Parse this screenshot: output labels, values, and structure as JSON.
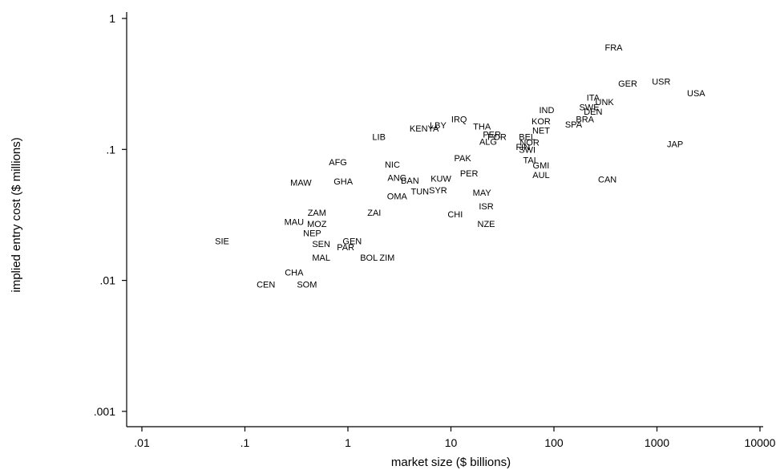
{
  "chart_data": {
    "type": "scatter",
    "xlabel": "market size ($ billions)",
    "ylabel": "implied entry cost ($ millions)",
    "x_scale": "log",
    "y_scale": "log",
    "xlim": [
      0.01,
      10000
    ],
    "ylim": [
      0.001,
      1
    ],
    "x_ticks": [
      {
        "value": 0.01,
        "label": ".01"
      },
      {
        "value": 0.1,
        "label": ".1"
      },
      {
        "value": 1,
        "label": "1"
      },
      {
        "value": 10,
        "label": "10"
      },
      {
        "value": 100,
        "label": "100"
      },
      {
        "value": 1000,
        "label": "1000"
      },
      {
        "value": 10000,
        "label": "10000"
      }
    ],
    "y_ticks": [
      {
        "value": 0.001,
        "label": ".001"
      },
      {
        "value": 0.01,
        "label": ".01"
      },
      {
        "value": 0.1,
        "label": ".1"
      },
      {
        "value": 1,
        "label": "1"
      }
    ],
    "grid": false,
    "points": [
      {
        "label": "FRA",
        "x": 380,
        "y": 0.6
      },
      {
        "label": "GER",
        "x": 520,
        "y": 0.32
      },
      {
        "label": "USR",
        "x": 1100,
        "y": 0.33
      },
      {
        "label": "USA",
        "x": 2400,
        "y": 0.27
      },
      {
        "label": "ITA",
        "x": 240,
        "y": 0.25
      },
      {
        "label": "UNK",
        "x": 310,
        "y": 0.23
      },
      {
        "label": "SWE",
        "x": 220,
        "y": 0.21
      },
      {
        "label": "DEN",
        "x": 240,
        "y": 0.195
      },
      {
        "label": "BRA",
        "x": 200,
        "y": 0.17
      },
      {
        "label": "SPA",
        "x": 155,
        "y": 0.155
      },
      {
        "label": "IND",
        "x": 85,
        "y": 0.2
      },
      {
        "label": "KOR",
        "x": 75,
        "y": 0.165
      },
      {
        "label": "NET",
        "x": 75,
        "y": 0.14
      },
      {
        "label": "BEL",
        "x": 55,
        "y": 0.125
      },
      {
        "label": "NOR",
        "x": 58,
        "y": 0.113
      },
      {
        "label": "FIN",
        "x": 50,
        "y": 0.105
      },
      {
        "label": "SWI",
        "x": 55,
        "y": 0.1
      },
      {
        "label": "JAP",
        "x": 1500,
        "y": 0.11
      },
      {
        "label": "CAN",
        "x": 330,
        "y": 0.059
      },
      {
        "label": "AUL",
        "x": 75,
        "y": 0.064
      },
      {
        "label": "TAI",
        "x": 58,
        "y": 0.083
      },
      {
        "label": "GMI",
        "x": 75,
        "y": 0.076
      },
      {
        "label": "IRQ",
        "x": 12,
        "y": 0.17
      },
      {
        "label": "THA",
        "x": 20,
        "y": 0.15
      },
      {
        "label": "KENYA",
        "x": 5.5,
        "y": 0.145
      },
      {
        "label": "LBY",
        "x": 7.5,
        "y": 0.153
      },
      {
        "label": "PER",
        "x": 25,
        "y": 0.13
      },
      {
        "label": "POR",
        "x": 28,
        "y": 0.125
      },
      {
        "label": "ALG",
        "x": 23,
        "y": 0.115
      },
      {
        "label": "LIB",
        "x": 2,
        "y": 0.125
      },
      {
        "label": "AFG",
        "x": 0.8,
        "y": 0.08
      },
      {
        "label": "NIC",
        "x": 2.7,
        "y": 0.077
      },
      {
        "label": "PAK",
        "x": 13,
        "y": 0.086
      },
      {
        "label": "MAW",
        "x": 0.35,
        "y": 0.056
      },
      {
        "label": "GHA",
        "x": 0.9,
        "y": 0.057
      },
      {
        "label": "ANG",
        "x": 3,
        "y": 0.061
      },
      {
        "label": "BAN",
        "x": 4,
        "y": 0.058
      },
      {
        "label": "KUW",
        "x": 8,
        "y": 0.06
      },
      {
        "label": "PER",
        "x": 15,
        "y": 0.066
      },
      {
        "label": "OMA",
        "x": 3,
        "y": 0.044
      },
      {
        "label": "TUN",
        "x": 5,
        "y": 0.048
      },
      {
        "label": "SYR",
        "x": 7.5,
        "y": 0.049
      },
      {
        "label": "MAY",
        "x": 20,
        "y": 0.047
      },
      {
        "label": "ISR",
        "x": 22,
        "y": 0.037
      },
      {
        "label": "CHI",
        "x": 11,
        "y": 0.032
      },
      {
        "label": "NZE",
        "x": 22,
        "y": 0.027
      },
      {
        "label": "ZAM",
        "x": 0.5,
        "y": 0.033
      },
      {
        "label": "ZAI",
        "x": 1.8,
        "y": 0.033
      },
      {
        "label": "MAU",
        "x": 0.3,
        "y": 0.028
      },
      {
        "label": "MOZ",
        "x": 0.5,
        "y": 0.027
      },
      {
        "label": "NEP",
        "x": 0.45,
        "y": 0.023
      },
      {
        "label": "GEN",
        "x": 1.1,
        "y": 0.02
      },
      {
        "label": "SIE",
        "x": 0.06,
        "y": 0.02
      },
      {
        "label": "SEN",
        "x": 0.55,
        "y": 0.019
      },
      {
        "label": "PAR",
        "x": 0.95,
        "y": 0.018
      },
      {
        "label": "MAL",
        "x": 0.55,
        "y": 0.015
      },
      {
        "label": "BOL",
        "x": 1.6,
        "y": 0.015
      },
      {
        "label": "ZIM",
        "x": 2.4,
        "y": 0.015
      },
      {
        "label": "CHA",
        "x": 0.3,
        "y": 0.0115
      },
      {
        "label": "CEN",
        "x": 0.16,
        "y": 0.0093
      },
      {
        "label": "SOM",
        "x": 0.4,
        "y": 0.0093
      }
    ]
  }
}
